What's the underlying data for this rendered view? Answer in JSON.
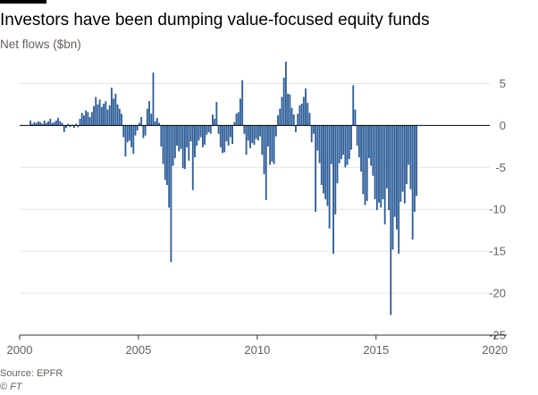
{
  "title": "Investors have been dumping value-focused equity funds",
  "subtitle": "Net flows ($bn)",
  "source": "Source: EPFR",
  "credit": "© FT",
  "colors": {
    "bar": "#2e5e99",
    "grid": "#e6e3e0",
    "zero": "#000000",
    "text": "#66605c"
  },
  "chart_data": {
    "type": "bar",
    "title": "Investors have been dumping value-focused equity funds",
    "ylabel": "Net flows ($bn)",
    "xlabel": "",
    "x_unit": "month",
    "xlim": [
      2000,
      2020.5
    ],
    "ylim": [
      -25,
      7.5
    ],
    "x_ticks": [
      2000,
      2005,
      2010,
      2015,
      2020
    ],
    "y_ticks": [
      5,
      0,
      -5,
      -10,
      -15,
      -20,
      -25
    ],
    "grid": true,
    "legend": "none",
    "y_axis_side": "right",
    "series": [
      {
        "start": "2000-06",
        "values": [
          0.6,
          0.2,
          0.4,
          0.3,
          0.5,
          0.4,
          0.2,
          0.6,
          0.3,
          0.5,
          0.8,
          0.3,
          0.4,
          0.6,
          0.9,
          0.5,
          0.3,
          -0.8,
          -0.3,
          0.2,
          -0.2,
          0.1,
          -0.3,
          0.2,
          -0.2,
          0.8,
          1.5,
          1.2,
          1.8,
          1.6,
          1.0,
          1.6,
          2.3,
          3.4,
          2.5,
          3.1,
          2.2,
          2.6,
          2.9,
          1.9,
          2.4,
          4.5,
          3.2,
          3.8,
          2.5,
          2.0,
          1.4,
          -1.4,
          -3.7,
          -2.0,
          -1.8,
          -2.6,
          -3.4,
          -1.2,
          -0.6,
          0.3,
          1.0,
          -1.5,
          -1.2,
          2.0,
          2.9,
          1.4,
          6.3,
          0.5,
          0.9,
          0.3,
          -2.5,
          -4.6,
          -6.5,
          -7.1,
          -9.8,
          -16.3,
          -4.8,
          -3.9,
          -2.4,
          -3.1,
          -2.8,
          -5.1,
          -5.2,
          -2.6,
          -4.2,
          -1.9,
          -7.7,
          -3.8,
          -2.4,
          -1.8,
          -1.4,
          -2.6,
          -2.3,
          -1.1,
          -0.8,
          -1.0,
          1.3,
          0.8,
          2.8,
          -1.0,
          -2.6,
          -3.3,
          -3.2,
          -1.9,
          -2.4,
          -1.4,
          -2.2,
          0.4,
          1.4,
          1.6,
          3.2,
          5.4,
          -1.0,
          -3.5,
          -1.8,
          -2.7,
          -2.1,
          -2.3,
          -1.6,
          -1.8,
          -1.3,
          -3.5,
          -5.8,
          -8.9,
          -2.5,
          -4.7,
          -4.3,
          -4.6,
          -1.3,
          1.2,
          2.0,
          3.4,
          5.7,
          7.6,
          3.8,
          3.7,
          2.1,
          1.3,
          -0.8,
          1.4,
          2.4,
          2.6,
          3.4,
          4.4,
          2.7,
          1.5,
          -2.0,
          -1.0,
          -10.3,
          -3.0,
          -4.5,
          -7.1,
          -8.1,
          -8.8,
          -9.6,
          -12.3,
          -4.6,
          -15.3,
          -10.6,
          -6.9,
          -4.5,
          -4.0,
          -3.5,
          -5.0,
          -4.7,
          -4.0,
          -2.9,
          4.8,
          1.9,
          -2.4,
          -3.8,
          -5.5,
          -8.2,
          -9.5,
          -9.0,
          -3.9,
          -4.8,
          -6.0,
          -8.8,
          -10.1,
          -9.2,
          -9.8,
          -8.8,
          -11.8,
          -7.5,
          -10.1,
          -22.6,
          -14.8,
          -10.9,
          -12.4,
          -15.3,
          -9.1,
          -7.9,
          -9.3,
          -7.0,
          -4.7,
          -7.6,
          -13.6,
          -10.3,
          -8.4
        ]
      }
    ]
  }
}
